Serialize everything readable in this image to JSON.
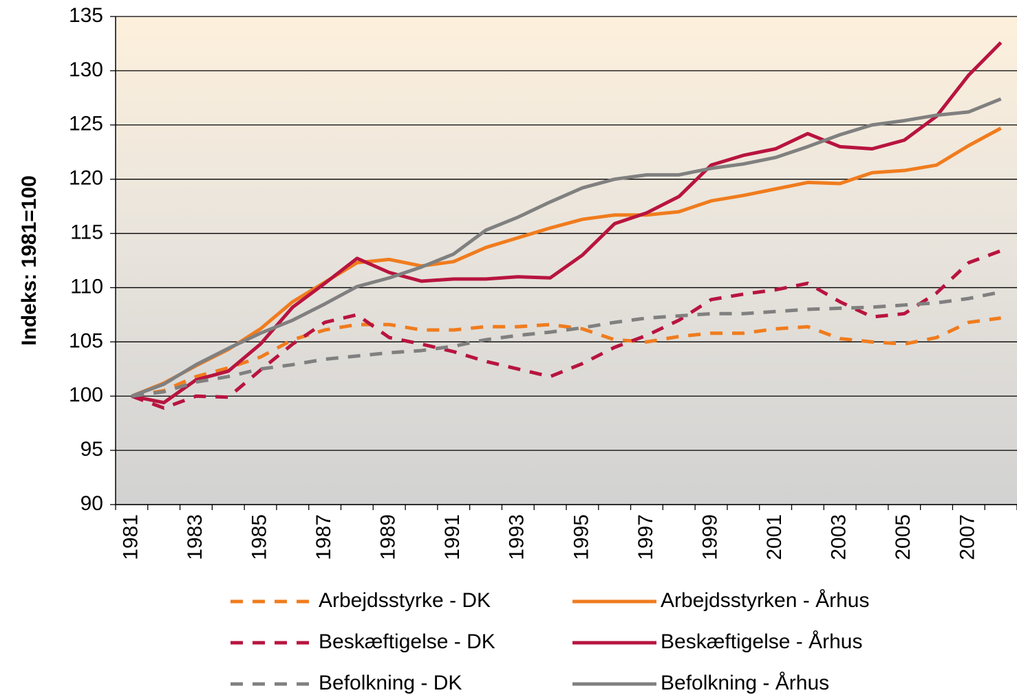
{
  "chart_data": {
    "type": "line",
    "ylabel": "Indeks: 1981=100",
    "categories": [
      "1981",
      null,
      "1983",
      null,
      "1985",
      null,
      "1987",
      null,
      "1989",
      null,
      "1991",
      null,
      "1993",
      null,
      "1995",
      null,
      "1997",
      null,
      "1999",
      null,
      "2001",
      null,
      "2003",
      null,
      "2005",
      null,
      "2007",
      null
    ],
    "ylim": [
      90,
      135
    ],
    "yticks": [
      90,
      95,
      100,
      105,
      110,
      115,
      120,
      125,
      130,
      135
    ],
    "grid": true,
    "legend": "bottom",
    "series": [
      {
        "name": "Arbejdsstyrke - DK",
        "color": "#f07c1e",
        "style": "dashed",
        "values": [
          100,
          100.5,
          101.8,
          102.6,
          103.6,
          105.2,
          106.1,
          106.6,
          106.6,
          106.1,
          106.1,
          106.4,
          106.4,
          106.6,
          106.2,
          105.2,
          105,
          105.5,
          105.8,
          105.8,
          106.2,
          106.4,
          105.3,
          105,
          104.8,
          105.4,
          106.8,
          107.2
        ]
      },
      {
        "name": "Arbejdsstyrken - Århus",
        "color": "#f07c1e",
        "style": "solid",
        "values": [
          100,
          101.2,
          102.8,
          104.3,
          106.2,
          108.7,
          110.5,
          112.3,
          112.6,
          112,
          112.4,
          113.7,
          114.6,
          115.5,
          116.3,
          116.7,
          116.7,
          117,
          118,
          118.5,
          119.1,
          119.7,
          119.6,
          120.6,
          120.8,
          121.3,
          123.1,
          124.7
        ]
      },
      {
        "name": "Beskæftigelse - DK",
        "color": "#b8143f",
        "style": "dashed",
        "values": [
          100,
          98.9,
          100,
          99.9,
          102.4,
          104.8,
          106.8,
          107.5,
          105.4,
          104.8,
          104.1,
          103.2,
          102.5,
          101.8,
          103,
          104.5,
          105.6,
          107,
          108.9,
          109.4,
          109.8,
          110.4,
          108.7,
          107.3,
          107.6,
          109.5,
          112.3,
          113.4
        ]
      },
      {
        "name": "Beskæftigelse - Århus",
        "color": "#b8143f",
        "style": "solid",
        "values": [
          100,
          99.4,
          101.5,
          102.3,
          104.8,
          108.2,
          110.4,
          112.7,
          111.4,
          110.6,
          110.8,
          110.8,
          111,
          110.9,
          113,
          115.9,
          116.9,
          118.4,
          121.3,
          122.2,
          122.8,
          124.2,
          123,
          122.8,
          123.6,
          125.8,
          129.6,
          132.6
        ]
      },
      {
        "name": "Befolkning - DK",
        "color": "#808080",
        "style": "dashed",
        "values": [
          100,
          100.4,
          101.3,
          101.8,
          102.5,
          102.9,
          103.4,
          103.7,
          104,
          104.2,
          104.6,
          105.2,
          105.6,
          105.9,
          106.3,
          106.8,
          107.2,
          107.4,
          107.6,
          107.6,
          107.8,
          108,
          108.1,
          108.2,
          108.4,
          108.6,
          109,
          109.6
        ]
      },
      {
        "name": "Befolkning - Århus",
        "color": "#808080",
        "style": "solid",
        "values": [
          100,
          101.1,
          102.9,
          104.4,
          105.8,
          107,
          108.5,
          110.1,
          110.9,
          111.9,
          113.1,
          115.3,
          116.5,
          117.9,
          119.2,
          120,
          120.4,
          120.4,
          121,
          121.4,
          122,
          123,
          124.1,
          125,
          125.4,
          125.9,
          126.2,
          127.4
        ]
      }
    ]
  }
}
